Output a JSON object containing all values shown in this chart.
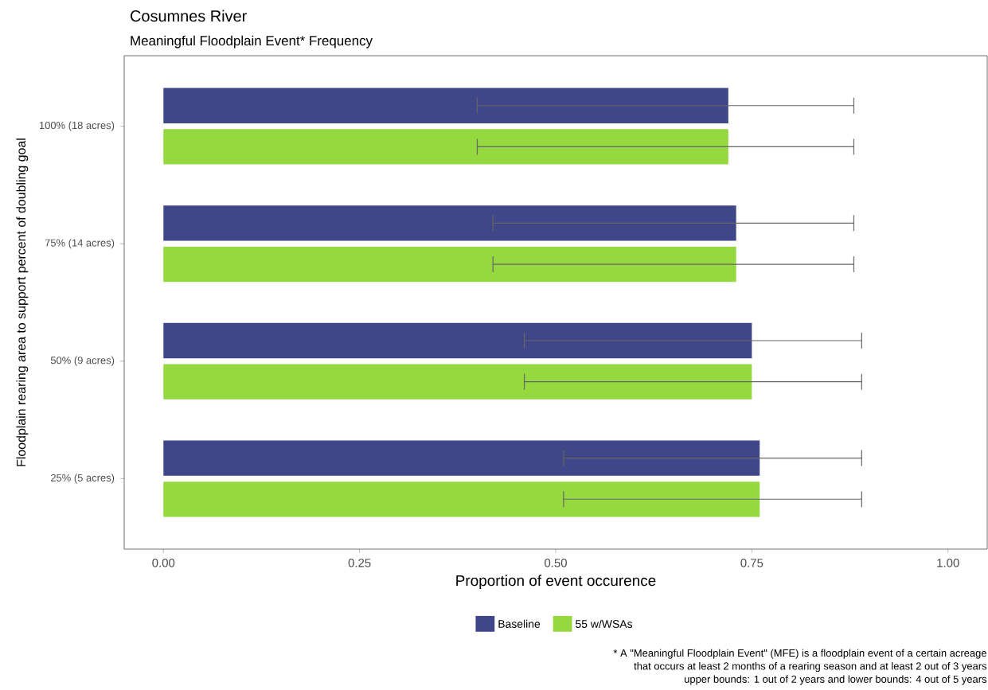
{
  "chart_data": {
    "type": "bar",
    "orientation": "horizontal",
    "title": "Cosumnes River",
    "subtitle": "Meaningful Floodplain Event* Frequency",
    "xlabel": "Proportion of event occurence",
    "ylabel": "Floodplain rearing area to support percent of doubling goal",
    "categories": [
      "100% (18 acres)",
      "75% (14 acres)",
      "50% (9 acres)",
      "25% (5 acres)"
    ],
    "series": [
      {
        "name": "Baseline",
        "color": "#404788",
        "values": [
          0.72,
          0.73,
          0.75,
          0.76
        ],
        "errors": [
          [
            0.4,
            0.88
          ],
          [
            0.42,
            0.88
          ],
          [
            0.46,
            0.89
          ],
          [
            0.51,
            0.89
          ]
        ]
      },
      {
        "name": "55 w/WSAs",
        "color": "#95d840",
        "values": [
          0.72,
          0.73,
          0.75,
          0.76
        ],
        "errors": [
          [
            0.4,
            0.88
          ],
          [
            0.42,
            0.88
          ],
          [
            0.46,
            0.89
          ],
          [
            0.51,
            0.89
          ]
        ]
      }
    ],
    "xlim": [
      -0.05,
      1.05
    ],
    "xticks": [
      {
        "value": 0,
        "label": "0.00"
      },
      {
        "value": 0.25,
        "label": "0.25"
      },
      {
        "value": 0.5,
        "label": "0.50"
      },
      {
        "value": 0.75,
        "label": "0.75"
      },
      {
        "value": 1,
        "label": "1.00"
      }
    ],
    "legend": "bottom",
    "grid": false,
    "annotations": [
      "* A \"Meaningful Floodplain Event\" (MFE) is a floodplain event of a certain acreage",
      "that occurs at least 2 months of a rearing season and at least 2 out of 3 years",
      "upper bounds: 1 out of 2 years and lower bounds: 4 out of 5 years"
    ]
  }
}
